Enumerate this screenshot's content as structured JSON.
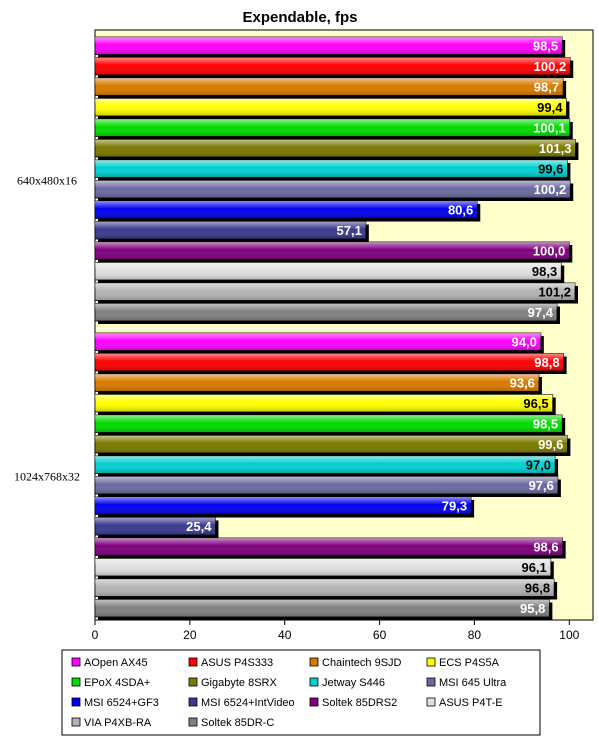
{
  "chart_data": {
    "type": "bar",
    "orientation": "horizontal",
    "title": "Expendable, fps",
    "xlabel": "",
    "ylabel": "",
    "xlim": [
      0,
      105
    ],
    "ticks": [
      0,
      20,
      40,
      60,
      80,
      100
    ],
    "grid": false,
    "legend_position": "bottom",
    "plot_background": "#ffffcc",
    "categories": [
      "640x480x16",
      "1024x768x32"
    ],
    "series": [
      {
        "name": "AOpen AX45",
        "color": "#ff00ff",
        "values": [
          "98,5",
          "94,0"
        ]
      },
      {
        "name": "ASUS P4S333",
        "color": "#ff0000",
        "values": [
          "100,2",
          "98,8"
        ]
      },
      {
        "name": "Chaintech 9SJD",
        "color": "#d97a00",
        "values": [
          "98,7",
          "93,6"
        ]
      },
      {
        "name": "ECS P4S5A",
        "color": "#ffff00",
        "values": [
          "99,4",
          "96,5"
        ]
      },
      {
        "name": "EPoX 4SDA+",
        "color": "#00dd00",
        "values": [
          "100,1",
          "98,5"
        ]
      },
      {
        "name": "Gigabyte 8SRX",
        "color": "#7a7a00",
        "values": [
          "101,3",
          "99,6"
        ]
      },
      {
        "name": "Jetway S446",
        "color": "#00d0d0",
        "values": [
          "99,6",
          "97,0"
        ]
      },
      {
        "name": "MSI 645 Ultra",
        "color": "#6a6aa0",
        "values": [
          "100,2",
          "97,6"
        ]
      },
      {
        "name": "MSI 6524+GF3",
        "color": "#0000ee",
        "values": [
          "80,6",
          "79,3"
        ]
      },
      {
        "name": "MSI 6524+IntVideo",
        "color": "#3a3a90",
        "values": [
          "57,1",
          "25,4"
        ]
      },
      {
        "name": "Soltek 85DRS2",
        "color": "#800080",
        "values": [
          "100,0",
          "98,6"
        ]
      },
      {
        "name": "ASUS P4T-E",
        "color": "#e0e0e0",
        "values": [
          "98,3",
          "96,1"
        ]
      },
      {
        "name": "VIA P4XB-RA",
        "color": "#b4b4b4",
        "values": [
          "101,2",
          "96,8"
        ]
      },
      {
        "name": "Soltek 85DR-C",
        "color": "#808080",
        "values": [
          "97,4",
          "95,8"
        ]
      }
    ]
  }
}
